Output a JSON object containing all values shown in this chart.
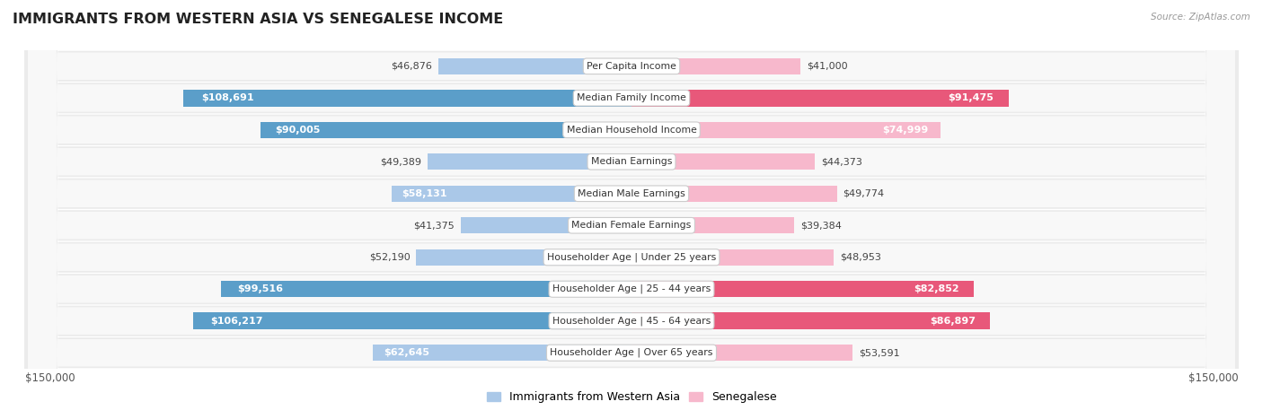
{
  "title": "IMMIGRANTS FROM WESTERN ASIA VS SENEGALESE INCOME",
  "source": "Source: ZipAtlas.com",
  "categories": [
    "Per Capita Income",
    "Median Family Income",
    "Median Household Income",
    "Median Earnings",
    "Median Male Earnings",
    "Median Female Earnings",
    "Householder Age | Under 25 years",
    "Householder Age | 25 - 44 years",
    "Householder Age | 45 - 64 years",
    "Householder Age | Over 65 years"
  ],
  "left_values": [
    46876,
    108691,
    90005,
    49389,
    58131,
    41375,
    52190,
    99516,
    106217,
    62645
  ],
  "right_values": [
    41000,
    91475,
    74999,
    44373,
    49774,
    39384,
    48953,
    82852,
    86897,
    53591
  ],
  "left_labels": [
    "$46,876",
    "$108,691",
    "$90,005",
    "$49,389",
    "$58,131",
    "$41,375",
    "$52,190",
    "$99,516",
    "$106,217",
    "$62,645"
  ],
  "right_labels": [
    "$41,000",
    "$91,475",
    "$74,999",
    "$44,373",
    "$49,774",
    "$39,384",
    "$48,953",
    "$82,852",
    "$86,897",
    "$53,591"
  ],
  "left_color_light": "#aac8e8",
  "left_color_dark": "#5b9ec9",
  "right_color_light": "#f7b8cc",
  "right_color_dark": "#e8587a",
  "max_value": 150000,
  "bar_height": 0.52,
  "row_bg_color": "#ebebeb",
  "row_inner_color": "#f8f8f8",
  "legend_left": "Immigrants from Western Asia",
  "legend_right": "Senegalese",
  "axis_label_left": "$150,000",
  "axis_label_right": "$150,000",
  "white_label_threshold": 58000,
  "dark_bar_threshold": 75000,
  "fig_bg": "#ffffff"
}
